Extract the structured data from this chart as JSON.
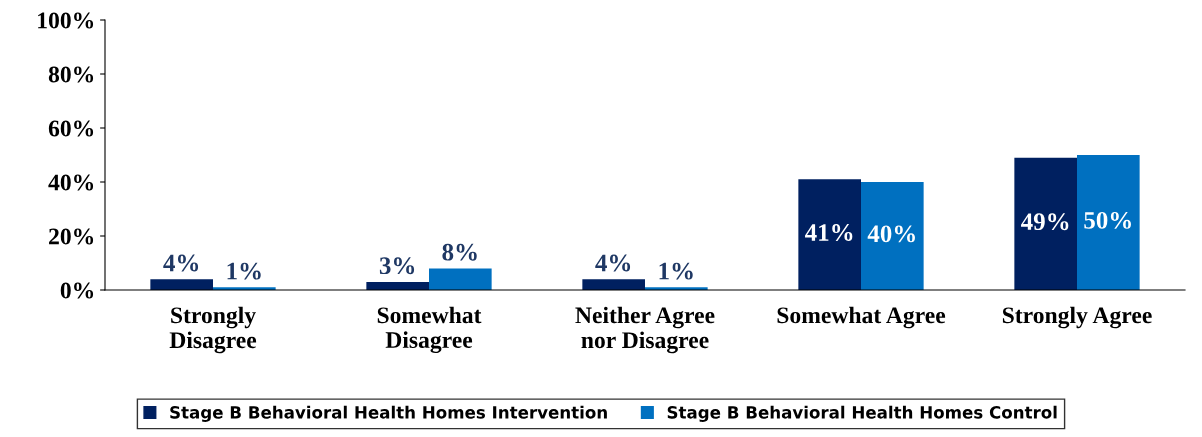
{
  "chart_data": {
    "type": "bar",
    "categories": [
      "Strongly\nDisagree",
      "Somewhat\nDisagree",
      "Neither Agree\nnor Disagree",
      "Somewhat Agree",
      "Strongly Agree"
    ],
    "series": [
      {
        "name": "Stage B Behavioral Health Homes Intervention",
        "color": "#002060",
        "values": [
          4,
          3,
          4,
          41,
          49
        ],
        "value_labels": [
          "4%",
          "3%",
          "4%",
          "41%",
          "49%"
        ]
      },
      {
        "name": "Stage B Behavioral Health Homes Control",
        "color": "#0070c0",
        "values": [
          1,
          8,
          1,
          40,
          50
        ],
        "value_labels": [
          "1%",
          "8%",
          "1%",
          "40%",
          "50%"
        ]
      }
    ],
    "ylim": [
      0,
      100
    ],
    "yticks": [
      {
        "value": 0,
        "label": "0%"
      },
      {
        "value": 20,
        "label": "20%"
      },
      {
        "value": 40,
        "label": "40%"
      },
      {
        "value": 60,
        "label": "60%"
      },
      {
        "value": 80,
        "label": "80%"
      },
      {
        "value": 100,
        "label": "100%"
      }
    ],
    "legend": "bottom",
    "grid": false
  }
}
